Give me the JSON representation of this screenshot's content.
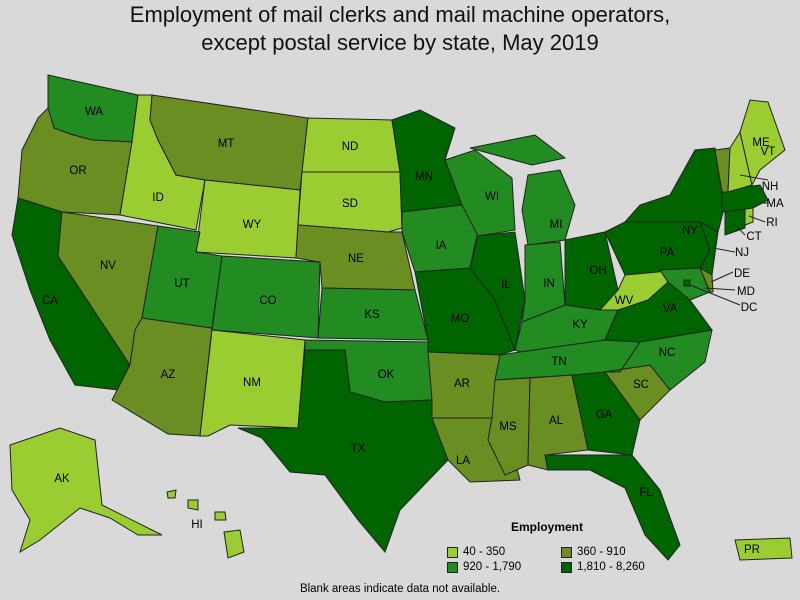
{
  "title_line1": "Employment of mail clerks and mail machine operators,",
  "title_line2": "except postal service by state, May 2019",
  "legend": {
    "title": "Employment",
    "classes": [
      {
        "key": "c1",
        "label": "40 - 350",
        "color": "#9acd32"
      },
      {
        "key": "c2",
        "label": "360 - 910",
        "color": "#6b8e23"
      },
      {
        "key": "c3",
        "label": "920 - 1,790",
        "color": "#228b22"
      },
      {
        "key": "c4",
        "label": "1,810 - 8,260",
        "color": "#006400"
      }
    ]
  },
  "note": "Blank areas indicate data not available.",
  "states": {
    "WA": "c3",
    "OR": "c2",
    "CA": "c4",
    "ID": "c1",
    "NV": "c2",
    "AZ": "c2",
    "MT": "c2",
    "WY": "c1",
    "UT": "c3",
    "CO": "c3",
    "NM": "c1",
    "ND": "c1",
    "SD": "c1",
    "NE": "c2",
    "KS": "c3",
    "OK": "c3",
    "TX": "c4",
    "MN": "c4",
    "IA": "c3",
    "MO": "c4",
    "AR": "c2",
    "LA": "c2",
    "WI": "c3",
    "IL": "c4",
    "MI": "c3",
    "IN": "c3",
    "OH": "c4",
    "KY": "c3",
    "TN": "c3",
    "MS": "c2",
    "AL": "c2",
    "GA": "c4",
    "FL": "c4",
    "SC": "c2",
    "NC": "c3",
    "VA": "c4",
    "WV": "c1",
    "PA": "c4",
    "NY": "c4",
    "VT": "c2",
    "NH": "c1",
    "ME": "c1",
    "MA": "c4",
    "RI": "c1",
    "CT": "c4",
    "NJ": "c4",
    "DE": "c2",
    "MD": "c3",
    "DC": "c4",
    "AK": "c1",
    "HI": "c1",
    "PR": "c1"
  }
}
